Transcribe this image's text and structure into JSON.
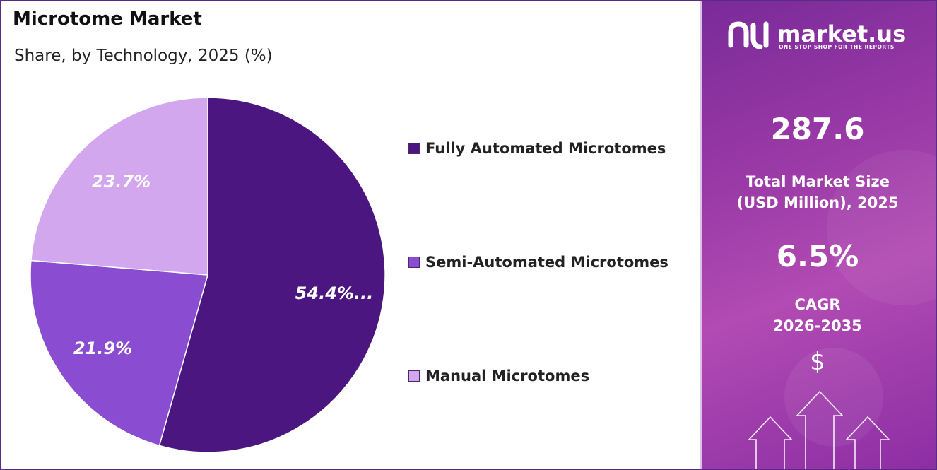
{
  "header": {
    "title": "Microtome Market",
    "subtitle": "Share, by Technology, 2025 (%)"
  },
  "chart_data": {
    "type": "pie",
    "title": "Microtome Market",
    "subtitle": "Share, by Technology, 2025 (%)",
    "legend_position": "right",
    "slices": [
      {
        "name": "Fully Automated Microtomes",
        "value": 54.4,
        "label": "54.4%...",
        "color": "#4b1680"
      },
      {
        "name": "Semi-Automated Microtomes",
        "value": 21.9,
        "label": "21.9%",
        "color": "#8a4cd0"
      },
      {
        "name": "Manual Microtomes",
        "value": 23.7,
        "label": "23.7%",
        "color": "#d3a7ee"
      }
    ]
  },
  "sidebar": {
    "brand_name": "market.us",
    "brand_tagline": "ONE STOP SHOP FOR THE REPORTS",
    "market_size_value": "287.6",
    "market_size_label_line1": "Total Market Size",
    "market_size_label_line2": "(USD Million), 2025",
    "cagr_value": "6.5%",
    "cagr_label_line1": "CAGR",
    "cagr_label_line2": "2026-2035",
    "currency_symbol": "$",
    "colors": {
      "gradient_start": "#7a2a9a",
      "gradient_end": "#b24bb3"
    }
  }
}
